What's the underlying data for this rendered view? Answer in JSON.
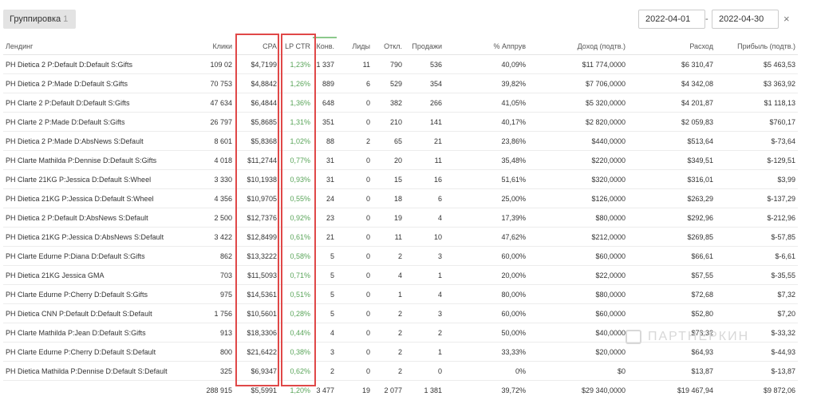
{
  "toolbar": {
    "grouping_label": "Группировка",
    "grouping_count": "1",
    "date_from": "2022-04-01",
    "date_separator": "-",
    "date_to": "2022-04-30",
    "clear_icon": "×"
  },
  "table": {
    "columns": [
      "Лендинг",
      "Клики",
      "CPA",
      "LP CTR",
      "Конв.",
      "Лиды",
      "Откл.",
      "Продажи",
      "% Аппрув",
      "Доход (подтв.)",
      "Расход",
      "Прибыль (подтв.)"
    ],
    "rows": [
      [
        "PH Dietica 2 P:Default D:Default S:Gifts",
        "109 02",
        "$4,7199",
        "1,23%",
        "1 337",
        "11",
        "790",
        "536",
        "40,09%",
        "$11 774,0000",
        "$6 310,47",
        "$5 463,53"
      ],
      [
        "PH Dietica 2 P:Made D:Default S:Gifts",
        "70 753",
        "$4,8842",
        "1,26%",
        "889",
        "6",
        "529",
        "354",
        "39,82%",
        "$7 706,0000",
        "$4 342,08",
        "$3 363,92"
      ],
      [
        "PH Clarte 2 P:Default D:Default S:Gifts",
        "47 634",
        "$6,4844",
        "1,36%",
        "648",
        "0",
        "382",
        "266",
        "41,05%",
        "$5 320,0000",
        "$4 201,87",
        "$1 118,13"
      ],
      [
        "PH Clarte 2 P:Made D:Default S:Gifts",
        "26 797",
        "$5,8685",
        "1,31%",
        "351",
        "0",
        "210",
        "141",
        "40,17%",
        "$2 820,0000",
        "$2 059,83",
        "$760,17"
      ],
      [
        "PH Dietica 2 P:Made D:AbsNews S:Default",
        "8 601",
        "$5,8368",
        "1,02%",
        "88",
        "2",
        "65",
        "21",
        "23,86%",
        "$440,0000",
        "$513,64",
        "$-73,64"
      ],
      [
        "PH Clarte Mathilda P:Dennise D:Default S:Gifts",
        "4 018",
        "$11,2744",
        "0,77%",
        "31",
        "0",
        "20",
        "11",
        "35,48%",
        "$220,0000",
        "$349,51",
        "$-129,51"
      ],
      [
        "PH Clarte 21KG P:Jessica D:Default S:Wheel",
        "3 330",
        "$10,1938",
        "0,93%",
        "31",
        "0",
        "15",
        "16",
        "51,61%",
        "$320,0000",
        "$316,01",
        "$3,99"
      ],
      [
        "PH Dietica 21KG P:Jessica D:Default S:Wheel",
        "4 356",
        "$10,9705",
        "0,55%",
        "24",
        "0",
        "18",
        "6",
        "25,00%",
        "$126,0000",
        "$263,29",
        "$-137,29"
      ],
      [
        "PH Dietica 2 P:Default D:AbsNews S:Default",
        "2 500",
        "$12,7376",
        "0,92%",
        "23",
        "0",
        "19",
        "4",
        "17,39%",
        "$80,0000",
        "$292,96",
        "$-212,96"
      ],
      [
        "PH Dietica 21KG P:Jessica D:AbsNews S:Default",
        "3 422",
        "$12,8499",
        "0,61%",
        "21",
        "0",
        "11",
        "10",
        "47,62%",
        "$212,0000",
        "$269,85",
        "$-57,85"
      ],
      [
        "PH Clarte Edurne P:Diana D:Default S:Gifts",
        "862",
        "$13,3222",
        "0,58%",
        "5",
        "0",
        "2",
        "3",
        "60,00%",
        "$60,0000",
        "$66,61",
        "$-6,61"
      ],
      [
        "PH Dietica 21KG Jessica GMA",
        "703",
        "$11,5093",
        "0,71%",
        "5",
        "0",
        "4",
        "1",
        "20,00%",
        "$22,0000",
        "$57,55",
        "$-35,55"
      ],
      [
        "PH Clarte Edurne P:Cherry D:Default S:Gifts",
        "975",
        "$14,5361",
        "0,51%",
        "5",
        "0",
        "1",
        "4",
        "80,00%",
        "$80,0000",
        "$72,68",
        "$7,32"
      ],
      [
        "PH Dietica CNN P:Default D:Default S:Default",
        "1 756",
        "$10,5601",
        "0,28%",
        "5",
        "0",
        "2",
        "3",
        "60,00%",
        "$60,0000",
        "$52,80",
        "$7,20"
      ],
      [
        "PH Clarte Mathilda P:Jean D:Default S:Gifts",
        "913",
        "$18,3306",
        "0,44%",
        "4",
        "0",
        "2",
        "2",
        "50,00%",
        "$40,0000",
        "$73,32",
        "$-33,32"
      ],
      [
        "PH Clarte Edurne P:Cherry D:Default S:Default",
        "800",
        "$21,6422",
        "0,38%",
        "3",
        "0",
        "2",
        "1",
        "33,33%",
        "$20,0000",
        "$64,93",
        "$-44,93"
      ],
      [
        "PH Dietica Mathilda P:Dennise D:Default S:Default",
        "325",
        "$6,9347",
        "0,62%",
        "2",
        "0",
        "2",
        "0",
        "0%",
        "$0",
        "$13,87",
        "$-13,87"
      ]
    ],
    "total": [
      "",
      "288 915",
      "$5,5991",
      "1,20%",
      "3 477",
      "19",
      "2 077",
      "1 381",
      "39,72%",
      "$29 340,0000",
      "$19 467,94",
      "$9 872,06"
    ]
  },
  "watermark": "ПАРТНЕРКИН",
  "colors": {
    "highlight": "#e04848",
    "ctr_green": "#5aa55a",
    "sort_indicator": "#8cc98c"
  }
}
